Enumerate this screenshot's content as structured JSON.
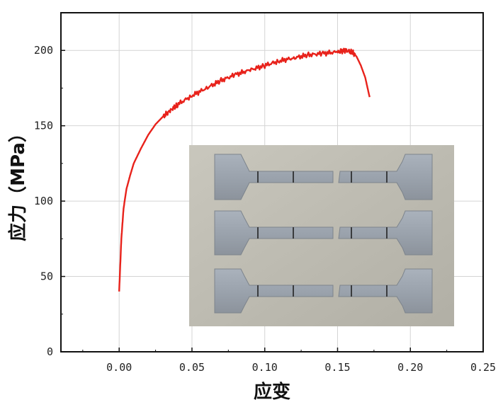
{
  "chart_data": {
    "type": "line",
    "title": "",
    "xlabel": "应变",
    "ylabel": "应力（MPa）",
    "xlim": [
      -0.04,
      0.25
    ],
    "ylim": [
      0,
      225
    ],
    "grid": true,
    "x_ticks": [
      0.0,
      0.05,
      0.1,
      0.15,
      0.2,
      0.25
    ],
    "x_tick_labels": [
      "0.00",
      "0.05",
      "0.10",
      "0.15",
      "0.20",
      "0.25"
    ],
    "y_ticks": [
      0,
      50,
      100,
      150,
      200
    ],
    "y_tick_labels": [
      "0",
      "50",
      "100",
      "150",
      "200"
    ],
    "line_color": "#e8221b",
    "series": [
      {
        "x": [
          0.0,
          0.0015,
          0.003,
          0.005,
          0.0075,
          0.01,
          0.015,
          0.02,
          0.025,
          0.03,
          0.035,
          0.04,
          0.05,
          0.06,
          0.07,
          0.08,
          0.09,
          0.1,
          0.11,
          0.12,
          0.13,
          0.14,
          0.15,
          0.155,
          0.16,
          0.163,
          0.166,
          0.169,
          0.172
        ],
        "y": [
          40,
          75,
          95,
          108,
          117,
          125,
          135,
          144,
          151,
          156,
          160,
          164,
          170,
          175,
          180,
          184,
          187,
          190,
          193,
          195,
          197,
          198,
          199,
          200,
          199,
          196,
          190,
          182,
          169
        ]
      }
    ],
    "inset_image": "tensile-specimens-photo"
  }
}
